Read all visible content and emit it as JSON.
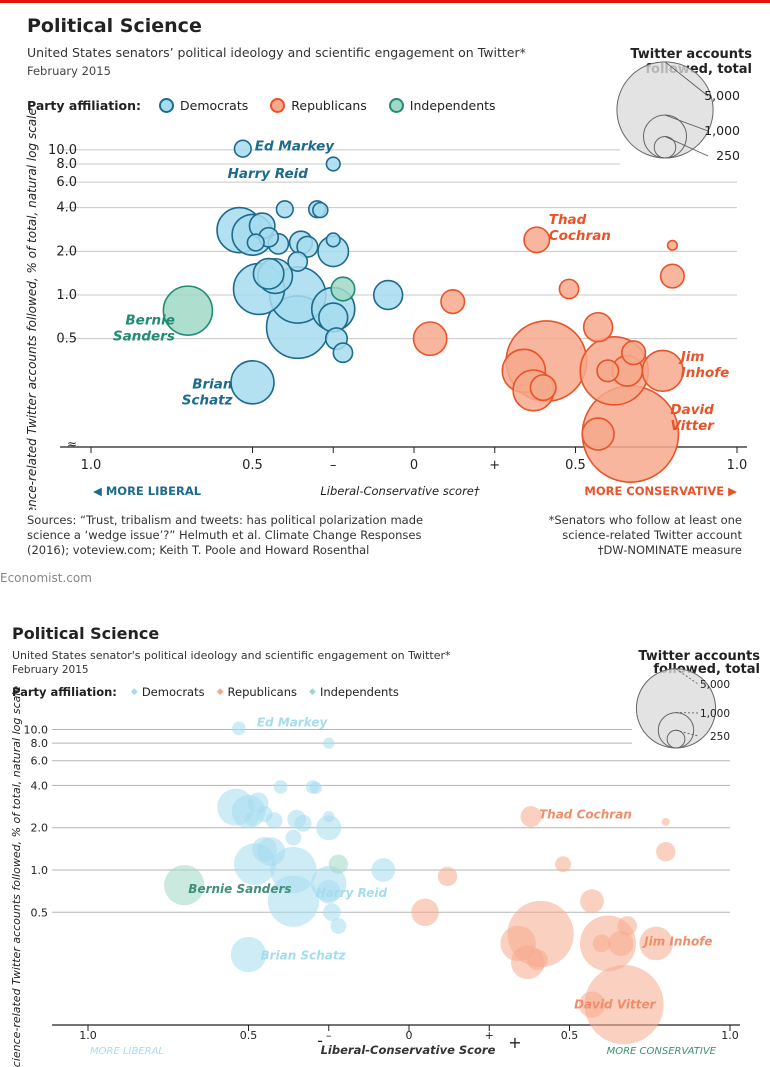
{
  "header": {
    "title": "Political Science",
    "subtitle": "United States senators’ political ideology and scientific engagement on Twitter*",
    "date": "February 2015"
  },
  "legend": {
    "label": "Party affiliation:",
    "democrats": "Democrats",
    "republicans": "Republicans",
    "independents": "Independents"
  },
  "size_key": {
    "title_line1": "Twitter accounts",
    "title_line2": "followed, total",
    "values": [
      "5,000",
      "1,000",
      "250"
    ]
  },
  "colors": {
    "democrat": "#a6dcef",
    "democrat_stroke": "#1d6b8c",
    "republican": "#f6a98c",
    "republican_stroke": "#e9532a",
    "independent": "#9fd8c6",
    "independent_stroke": "#1f8c73",
    "accent_red": "#e3120b"
  },
  "footer": {
    "sources": "Sources: “Trust, tribalism and tweets: has political polarization made science a ‘wedge issue’?” Helmuth et al. Climate Change Responses (2016); voteview.com; Keith T. Poole and Howard Rosenthal",
    "note1": "*Senators who follow at least one science-related Twitter account",
    "note2": "†DW-NOMINATE measure",
    "brand": "Economist.com"
  },
  "panel2": {
    "title": "Political Science",
    "subtitle": "United States senator's political ideology and scientific engagement on Twitter*",
    "date": "February 2015",
    "legend_label": "Party affiliation:",
    "size_title_line1": "Twitter accounts",
    "size_title_line2": "followed, total",
    "xlabel": "Liberal-Conservative Score",
    "more_liberal": "MORE LIBERAL",
    "more_conservative": "MORE CONSERVATIVE",
    "minus": "-",
    "plus": "+"
  },
  "chart_data": {
    "type": "scatter",
    "title": "Political Science",
    "xlabel": "Liberal-Conservative score†",
    "ylabel": "Science-related Twitter accounts followed, % of total, natural log scale",
    "x_tick_labels": [
      "1.0",
      "0.5",
      "–",
      "0",
      "+",
      "0.5",
      "1.0"
    ],
    "x_direction_labels": [
      "MORE LIBERAL",
      "MORE CONSERVATIVE"
    ],
    "y_tick_labels": [
      "10.0",
      "8.0",
      "6.0",
      "4.0",
      "2.0",
      "1.0",
      "0.5"
    ],
    "xlim": [
      -1.0,
      1.0
    ],
    "y_log": true,
    "size_legend": [
      5000,
      1000,
      250
    ],
    "series": [
      {
        "name": "Democrats",
        "points": [
          {
            "x": -0.53,
            "y": 10.2,
            "size": 150,
            "label": "Ed Markey"
          },
          {
            "x": -0.25,
            "y": 8.0,
            "size": 100
          },
          {
            "x": -0.4,
            "y": 3.9,
            "size": 150
          },
          {
            "x": -0.3,
            "y": 3.9,
            "size": 150
          },
          {
            "x": -0.29,
            "y": 3.85,
            "size": 120
          },
          {
            "x": -0.54,
            "y": 2.8,
            "size": 1100,
            "label": "Harry Reid"
          },
          {
            "x": -0.5,
            "y": 2.6,
            "size": 900
          },
          {
            "x": -0.47,
            "y": 3.0,
            "size": 350
          },
          {
            "x": -0.45,
            "y": 2.5,
            "size": 200
          },
          {
            "x": -0.42,
            "y": 2.25,
            "size": 220
          },
          {
            "x": -0.35,
            "y": 2.3,
            "size": 280
          },
          {
            "x": -0.33,
            "y": 2.15,
            "size": 230
          },
          {
            "x": -0.25,
            "y": 2.4,
            "size": 100
          },
          {
            "x": -0.25,
            "y": 2.0,
            "size": 500
          },
          {
            "x": -0.49,
            "y": 2.3,
            "size": 150
          },
          {
            "x": -0.36,
            "y": 1.7,
            "size": 200
          },
          {
            "x": -0.45,
            "y": 1.4,
            "size": 500
          },
          {
            "x": -0.43,
            "y": 1.35,
            "size": 650
          },
          {
            "x": -0.48,
            "y": 1.1,
            "size": 1400
          },
          {
            "x": -0.36,
            "y": 1.0,
            "size": 1700
          },
          {
            "x": -0.36,
            "y": 0.6,
            "size": 2100
          },
          {
            "x": -0.25,
            "y": 0.8,
            "size": 1000
          },
          {
            "x": -0.25,
            "y": 0.7,
            "size": 450
          },
          {
            "x": -0.24,
            "y": 0.5,
            "size": 250
          },
          {
            "x": -0.22,
            "y": 0.4,
            "size": 200
          },
          {
            "x": -0.08,
            "y": 1.0,
            "size": 450
          },
          {
            "x": -0.5,
            "y": 0.25,
            "size": 1000,
            "label": "Brian Schatz"
          }
        ]
      },
      {
        "name": "Republicans",
        "points": [
          {
            "x": 0.38,
            "y": 2.4,
            "size": 350,
            "label": "Thad Cochran"
          },
          {
            "x": 0.8,
            "y": 2.2,
            "size": 50
          },
          {
            "x": 0.8,
            "y": 1.35,
            "size": 300
          },
          {
            "x": 0.48,
            "y": 1.1,
            "size": 200
          },
          {
            "x": 0.12,
            "y": 0.9,
            "size": 300
          },
          {
            "x": 0.05,
            "y": 0.5,
            "size": 600
          },
          {
            "x": 0.41,
            "y": 0.35,
            "size": 3500
          },
          {
            "x": 0.34,
            "y": 0.3,
            "size": 1000
          },
          {
            "x": 0.37,
            "y": 0.22,
            "size": 900
          },
          {
            "x": 0.4,
            "y": 0.23,
            "size": 350
          },
          {
            "x": 0.57,
            "y": 0.6,
            "size": 450
          },
          {
            "x": 0.62,
            "y": 0.3,
            "size": 2500
          },
          {
            "x": 0.6,
            "y": 0.3,
            "size": 250
          },
          {
            "x": 0.66,
            "y": 0.3,
            "size": 500
          },
          {
            "x": 0.68,
            "y": 0.4,
            "size": 300
          },
          {
            "x": 0.77,
            "y": 0.3,
            "size": 900,
            "label": "Jim Inhofe"
          },
          {
            "x": 0.57,
            "y": 0.11,
            "size": 550
          },
          {
            "x": 0.67,
            "y": 0.11,
            "size": 5000,
            "label": "David Vitter"
          }
        ]
      },
      {
        "name": "Independents",
        "points": [
          {
            "x": -0.7,
            "y": 0.78,
            "size": 1300,
            "label": "Bernie Sanders"
          },
          {
            "x": -0.22,
            "y": 1.1,
            "size": 300
          }
        ]
      }
    ]
  }
}
